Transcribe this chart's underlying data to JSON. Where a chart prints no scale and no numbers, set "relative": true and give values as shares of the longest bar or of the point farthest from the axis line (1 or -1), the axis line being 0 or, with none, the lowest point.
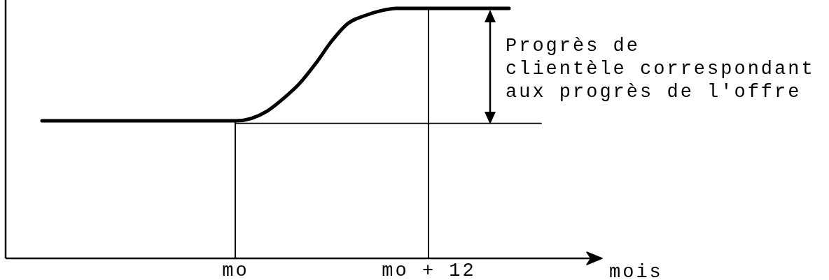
{
  "chart_data": {
    "type": "line",
    "relative": true,
    "xlabel": "mois",
    "tick_labels": "x",
    "categories": [
      null,
      null,
      null,
      null,
      null,
      null,
      null,
      null,
      null,
      null,
      null,
      null,
      null,
      null,
      "mo",
      null,
      null,
      null,
      null,
      null,
      null,
      null,
      null,
      null,
      null,
      null,
      "mo + 12",
      null,
      null,
      null,
      null,
      null,
      null,
      null,
      null,
      null,
      null
    ],
    "series": [
      {
        "color": "#000000",
        "values": [
          null,
          null,
          0.55,
          0.55,
          0.55,
          0.55,
          0.55,
          0.55,
          0.55,
          0.55,
          0.55,
          0.55,
          0.55,
          0.55,
          0.55,
          0.56,
          0.59,
          0.64,
          0.7,
          0.78,
          0.87,
          0.94,
          0.97,
          0.99,
          1,
          1,
          1,
          1,
          1,
          1,
          1,
          1,
          null,
          null,
          null,
          null,
          null
        ]
      },
      {
        "color": "#000000",
        "values": [
          null,
          null,
          null,
          null,
          null,
          null,
          null,
          null,
          null,
          null,
          null,
          null,
          null,
          null,
          0.54,
          0.54,
          0.54,
          0.54,
          0.54,
          0.54,
          0.54,
          0.54,
          0.54,
          0.54,
          0.54,
          0.54,
          0.54,
          0.54,
          0.54,
          0.54,
          0.54,
          0.54,
          0.54,
          0.54,
          null,
          null,
          null
        ]
      }
    ],
    "ref_lines": [
      {
        "axis": "x",
        "value": "mo"
      },
      {
        "axis": "x",
        "value": "mo + 12"
      }
    ],
    "annotations": [
      "Progrès de\nclientèle correspondant\naux progrès de l'offre"
    ]
  }
}
